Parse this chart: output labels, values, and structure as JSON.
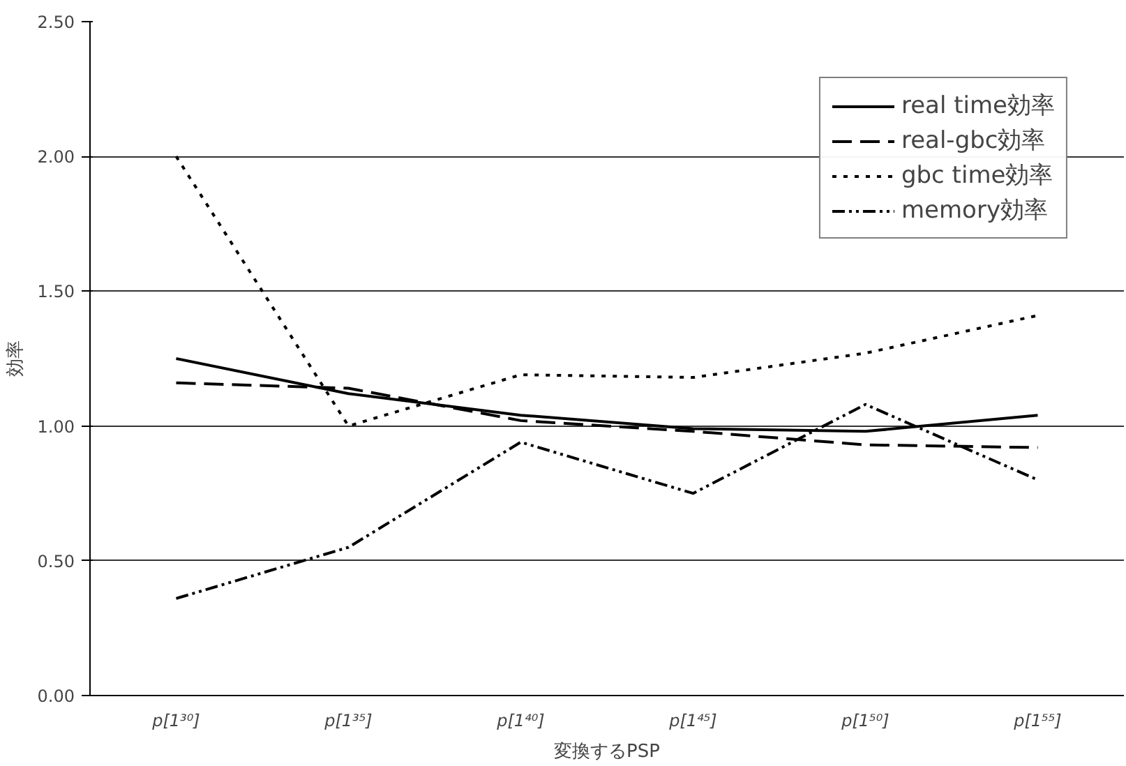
{
  "chart_data": {
    "type": "line",
    "xlabel": "変換するPSP",
    "ylabel": "効率",
    "categories": [
      "p[1³⁰]",
      "p[1³⁵]",
      "p[1⁴⁰]",
      "p[1⁴⁵]",
      "p[1⁵⁰]",
      "p[1⁵⁵]"
    ],
    "series": [
      {
        "name": "real time効率",
        "color": "#000000",
        "line_style": "solid",
        "values": [
          1.25,
          1.12,
          1.04,
          0.99,
          0.98,
          1.04
        ]
      },
      {
        "name": "real-gbc効率",
        "color": "#000000",
        "line_style": "dashed",
        "values": [
          1.16,
          1.14,
          1.02,
          0.98,
          0.93,
          0.92
        ]
      },
      {
        "name": "gbc time効率",
        "color": "#000000",
        "line_style": "dotted",
        "values": [
          2.0,
          1.0,
          1.19,
          1.18,
          1.27,
          1.41
        ]
      },
      {
        "name": "memory効率",
        "color": "#000000",
        "line_style": "dashdotdot",
        "values": [
          0.36,
          0.55,
          0.94,
          0.75,
          1.08,
          0.8
        ]
      }
    ],
    "ylim": [
      0,
      2.5
    ],
    "yticks": [
      {
        "value": 0,
        "label": "0.00"
      },
      {
        "value": 0.5,
        "label": "0.50"
      },
      {
        "value": 1,
        "label": "1.00"
      },
      {
        "value": 1.5,
        "label": "1.50"
      },
      {
        "value": 2,
        "label": "2.00"
      },
      {
        "value": 2.5,
        "label": "2.50"
      }
    ],
    "grid": "y",
    "legend": "top right",
    "marker": "none"
  }
}
